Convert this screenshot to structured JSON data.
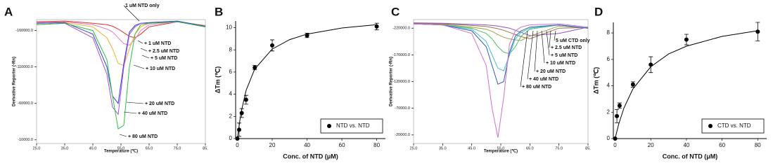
{
  "chart_data": [
    {
      "type": "line",
      "panel": "A",
      "y_label": "Derivative Reporter (-Rn)",
      "x_label": "Temperature (℃)",
      "annotations": [
        "1 uM NTD only",
        "+ 1 uM NTD",
        "+ 2.5 uM NTD",
        "+ 5 uM NTD",
        "+ 10 uM NTD",
        "+ 20 uM NTD",
        "+ 40 uM NTD",
        "+ 80 uM NTD"
      ],
      "xlim": [
        25,
        85
      ],
      "ylim": [
        -5000,
        -175000
      ],
      "xticks": [
        {
          "value": 25,
          "label": "25.0"
        },
        {
          "value": 35,
          "label": "35.0"
        },
        {
          "value": 45,
          "label": "45.0"
        },
        {
          "value": 55,
          "label": "55.0"
        },
        {
          "value": 65,
          "label": "65.0"
        },
        {
          "value": 75,
          "label": "75.0"
        },
        {
          "value": 85,
          "label": "85."
        }
      ],
      "yticks": [
        {
          "value": -160000,
          "label": "-160000.0"
        },
        {
          "value": -110000,
          "label": "-110000.0"
        },
        {
          "value": -60000,
          "label": "-60000.0"
        },
        {
          "value": -10000,
          "label": "-10000.0"
        }
      ],
      "x": [
        25,
        35,
        45,
        50,
        52,
        54,
        56,
        58,
        60,
        62,
        65,
        75,
        85
      ],
      "series": [
        {
          "color": "#e03030",
          "values": [
            -172000,
            -173000,
            -170000,
            -168000,
            -166000,
            -162000,
            -157000,
            -152000,
            -150000,
            -155000,
            -165000,
            -172000,
            -166000
          ]
        },
        {
          "color": "#e080c0",
          "values": [
            -171000,
            -172000,
            -168000,
            -162000,
            -158000,
            -150000,
            -142000,
            -140000,
            -148000,
            -160000,
            -168000,
            -172000,
            -166000
          ]
        },
        {
          "color": "#f0b030",
          "values": [
            -170000,
            -171000,
            -165000,
            -150000,
            -135000,
            -115000,
            -112000,
            -135000,
            -155000,
            -165000,
            -170000,
            -172000,
            -167000
          ]
        },
        {
          "color": "#3040d0",
          "values": [
            -170000,
            -171000,
            -155000,
            -110000,
            -70000,
            -60000,
            -115000,
            -158000,
            -167000,
            -170000,
            -171000,
            -173000,
            -166000
          ]
        },
        {
          "color": "#a050e0",
          "values": [
            -168000,
            -170000,
            -150000,
            -100000,
            -55000,
            -45000,
            -110000,
            -155000,
            -165000,
            -170000,
            -170000,
            -172000,
            -165000
          ]
        },
        {
          "color": "#30c040",
          "values": [
            -168000,
            -170000,
            -160000,
            -120000,
            -70000,
            -25000,
            -30000,
            -110000,
            -155000,
            -168000,
            -170000,
            -172000,
            -165000
          ]
        }
      ]
    },
    {
      "type": "scatter",
      "panel": "B",
      "y_label": "ΔTm (℃)",
      "x_label": "Conc. of NTD (μM)",
      "xlim": [
        -1,
        85
      ],
      "ylim": [
        0,
        10.6
      ],
      "xticks": [
        0,
        20,
        40,
        60,
        80
      ],
      "yticks": [
        0,
        2,
        4,
        6,
        8,
        10
      ],
      "series": [
        {
          "name": "NTD vs. NTD",
          "color": "#000000",
          "x": [
            0,
            1,
            2.5,
            5,
            10,
            20,
            40,
            80
          ],
          "values": [
            0,
            0.8,
            2.3,
            3.5,
            6.4,
            8.4,
            9.3,
            10.1
          ],
          "errors": [
            0,
            0.6,
            0.4,
            0.4,
            0.2,
            0.5,
            0.2,
            0.3
          ]
        },
        {
          "color": "#000000",
          "x": [
            0,
            2,
            5,
            10,
            20,
            30,
            40,
            60,
            80
          ],
          "values": [
            0,
            2.26,
            4.35,
            6.28,
            8.07,
            8.92,
            9.42,
            9.97,
            10.27
          ]
        }
      ]
    },
    {
      "type": "line",
      "panel": "C",
      "y_label": "Derivative Reporter (-Rn)",
      "x_label": "Temperature (℃)",
      "annotations": [
        "5 uM CTD only",
        "+ 2.5 uM NTD",
        "+ 5 uM NTD",
        "+ 10 uM NTD",
        "+ 20 uM NTD",
        "+ 40 uM NTD",
        "+ 80 uM NTD"
      ],
      "xlim": [
        25,
        85
      ],
      "ylim": [
        -4000,
        -236000
      ],
      "xticks": [
        {
          "value": 25,
          "label": "25.0"
        },
        {
          "value": 35,
          "label": "35.0"
        },
        {
          "value": 45,
          "label": "45.0"
        },
        {
          "value": 55,
          "label": "55.0"
        },
        {
          "value": 65,
          "label": "65.0"
        },
        {
          "value": 75,
          "label": "75.0"
        },
        {
          "value": 85,
          "label": "85."
        }
      ],
      "yticks": [
        {
          "value": -220000,
          "label": "-220000.0"
        },
        {
          "value": -170000,
          "label": "-170000.0"
        },
        {
          "value": -120000,
          "label": "-120000.0"
        },
        {
          "value": -70000,
          "label": "-70000.0"
        },
        {
          "value": -20000,
          "label": "-20000.0"
        }
      ],
      "x": [
        25,
        35,
        45,
        50,
        52,
        54,
        56,
        58,
        60,
        62,
        65,
        75,
        85
      ],
      "series": [
        {
          "color": "#9050c0",
          "values": [
            -230000,
            -229000,
            -227000,
            -226000,
            -225000,
            -224000,
            -222000,
            -220000,
            -216000,
            -212000,
            -206000,
            -210000,
            -222000
          ]
        },
        {
          "color": "#a07050",
          "values": [
            -229000,
            -228000,
            -225000,
            -223000,
            -221000,
            -219000,
            -216000,
            -212000,
            -208000,
            -204000,
            -200000,
            -220000,
            -221000
          ]
        },
        {
          "color": "#a0a040",
          "values": [
            -228000,
            -227000,
            -222000,
            -218000,
            -214000,
            -208000,
            -203000,
            -200000,
            -198000,
            -197000,
            -205000,
            -224000,
            -220000
          ]
        },
        {
          "color": "#50c060",
          "values": [
            -228000,
            -226000,
            -220000,
            -210000,
            -200000,
            -185000,
            -175000,
            -172000,
            -185000,
            -205000,
            -218000,
            -226000,
            -220000
          ]
        },
        {
          "color": "#40c0d0",
          "values": [
            -228000,
            -226000,
            -218000,
            -195000,
            -170000,
            -145000,
            -140000,
            -170000,
            -200000,
            -212000,
            -220000,
            -226000,
            -220000
          ]
        },
        {
          "color": "#3060c0",
          "values": [
            -228000,
            -226000,
            -215000,
            -185000,
            -150000,
            -115000,
            -120000,
            -175000,
            -205000,
            -215000,
            -222000,
            -226000,
            -220000
          ]
        },
        {
          "color": "#d070d0",
          "values": [
            -228000,
            -226000,
            -210000,
            -150000,
            -70000,
            -15000,
            -90000,
            -190000,
            -215000,
            -222000,
            -226000,
            -228000,
            -222000
          ]
        }
      ]
    },
    {
      "type": "scatter",
      "panel": "D",
      "y_label": "ΔTm (℃)",
      "x_label": "Conc. of NTD (μM)",
      "xlim": [
        -1,
        85
      ],
      "ylim": [
        0,
        8.8
      ],
      "xticks": [
        0,
        20,
        40,
        60,
        80
      ],
      "yticks": [
        0,
        2,
        4,
        6,
        8
      ],
      "series": [
        {
          "name": "CTD vs. NTD",
          "color": "#000000",
          "x": [
            0,
            1,
            2.5,
            10,
            20,
            40,
            80
          ],
          "values": [
            0,
            1.7,
            2.5,
            4.1,
            5.6,
            7.5,
            8.1
          ],
          "errors": [
            0,
            0.5,
            0.2,
            0.2,
            0.6,
            0.4,
            0.7
          ]
        },
        {
          "color": "#000000",
          "x": [
            0,
            2,
            5,
            10,
            20,
            30,
            40,
            60,
            80
          ],
          "values": [
            0,
            1.09,
            2.33,
            3.77,
            5.44,
            6.41,
            7.0,
            7.74,
            8.17
          ]
        }
      ]
    }
  ]
}
